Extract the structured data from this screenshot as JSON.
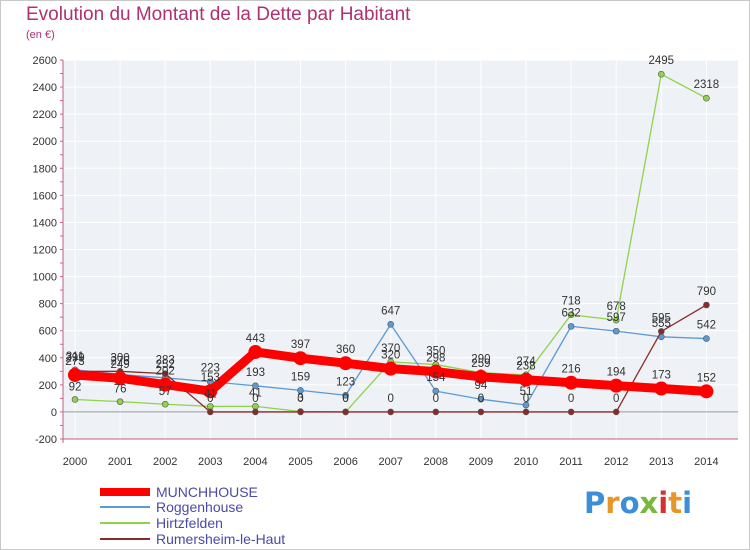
{
  "title": "Evolution du Montant de la Dette par Habitant",
  "subtitle": "(en €)",
  "logo": {
    "letters": [
      "P",
      "r",
      "o",
      "x",
      "i",
      "t",
      "i"
    ],
    "colors": [
      "#3c8fd6",
      "#e8962a",
      "#3c8fd6",
      "#79b83e",
      "#d8312d",
      "#e8962a",
      "#3c8fd6"
    ]
  },
  "chart_data": {
    "type": "line",
    "x": [
      "2000",
      "2001",
      "2002",
      "2003",
      "2004",
      "2005",
      "2006",
      "2007",
      "2008",
      "2009",
      "2010",
      "2011",
      "2012",
      "2013",
      "2014"
    ],
    "ylim": [
      -200,
      2600
    ],
    "yticks": [
      "-200",
      "0",
      "200",
      "400",
      "600",
      "800",
      "1000",
      "1200",
      "1400",
      "1600",
      "1800",
      "2000",
      "2200",
      "2400",
      "2600"
    ],
    "grid": true,
    "legend_position": "bottom-left",
    "series": [
      {
        "name": "MUNCHHOUSE",
        "color": "#ff0000",
        "values": [
          273,
          249,
          202,
          153,
          443,
          397,
          360,
          320,
          298,
          259,
          238,
          216,
          194,
          173,
          152
        ],
        "labels": [
          "273",
          "249",
          "202",
          "153",
          "443",
          "397",
          "360",
          "320",
          "298",
          "259",
          "238",
          "216",
          "194",
          "173",
          "152"
        ]
      },
      {
        "name": "Roggenhouse",
        "color": "#5b9bd5",
        "values": [
          311,
          276,
          252,
          223,
          193,
          159,
          123,
          647,
          154,
          94,
          51,
          632,
          597,
          555,
          542
        ],
        "labels": [
          "311",
          "276",
          "252",
          "223",
          "193",
          "159",
          "123",
          "647",
          "154",
          "94",
          "51",
          "632",
          "597",
          "555",
          "542"
        ]
      },
      {
        "name": "Hirtzfelden",
        "color": "#8fd34a",
        "values": [
          92,
          76,
          57,
          41,
          41,
          3,
          0,
          370,
          350,
          290,
          274,
          718,
          678,
          2495,
          2318
        ],
        "labels": [
          "92",
          "76",
          "57",
          "41",
          "41",
          "3",
          "0",
          "370",
          "350",
          "290",
          "274",
          "718",
          "678",
          "2495",
          "2318"
        ]
      },
      {
        "name": "Rumersheim-le-Haut",
        "color": "#8b2a2a",
        "values": [
          299,
          300,
          283,
          0,
          0,
          0,
          0,
          0,
          0,
          0,
          0,
          0,
          0,
          595,
          790
        ],
        "labels": [
          "299",
          "300",
          "283",
          "0",
          "0",
          "0",
          "0",
          "0",
          "0",
          "0",
          "0",
          "0",
          "0",
          "595",
          "790"
        ]
      }
    ]
  }
}
